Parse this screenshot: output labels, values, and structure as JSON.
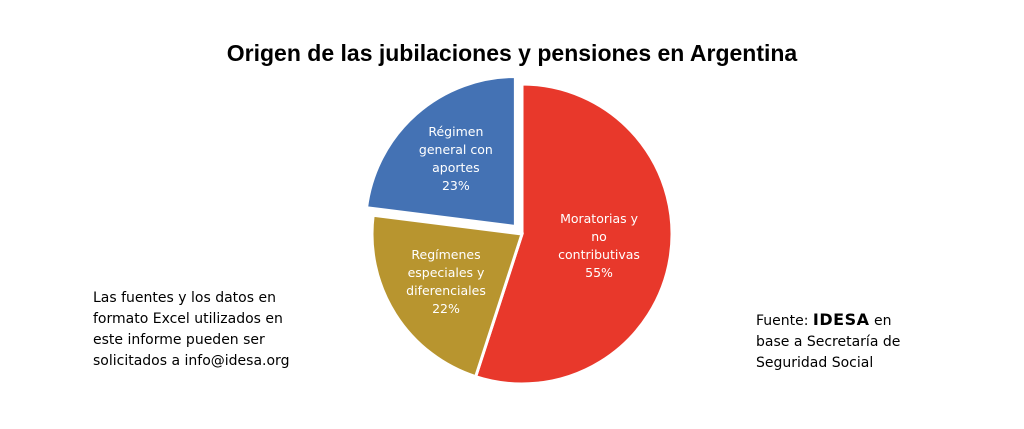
{
  "chart_data": {
    "type": "pie",
    "title": "Origen de las jubilaciones y pensiones en Argentina",
    "slices": [
      {
        "label_lines": [
          "Moratorias y",
          "no",
          "contributivas",
          "55%"
        ],
        "value": 55,
        "color": "#E8382B"
      },
      {
        "label_lines": [
          "Regímenes",
          "especiales y",
          "diferenciales",
          "22%"
        ],
        "value": 22,
        "color": "#B8952F"
      },
      {
        "label_lines": [
          "Régimen",
          "general con",
          "aportes",
          "23%"
        ],
        "value": 23,
        "color": "#4472B4"
      }
    ]
  },
  "notes": {
    "left": "Las fuentes y los datos en formato Excel utilizados en este informe pueden ser solicitados a info@idesa.org",
    "right_prefix": "Fuente: ",
    "right_brand": "IDESA",
    "right_suffix": " en base a Secretaría de Seguridad Social"
  }
}
